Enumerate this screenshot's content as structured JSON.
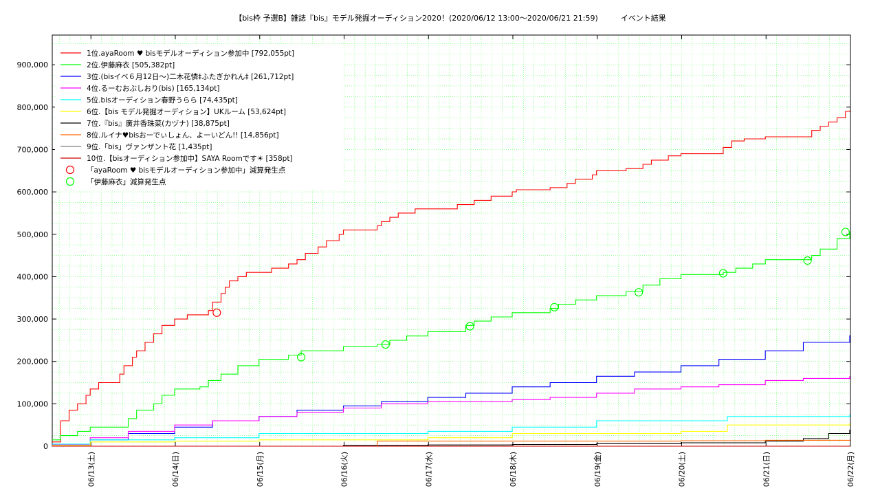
{
  "chart_data": {
    "type": "line",
    "title": "【bis枠 予選B】雑誌『bis』モデル発掘オーディション2020！(2020/06/12 13:00〜2020/06/21 21:59)　　　イベント結果",
    "xlabel": "",
    "ylabel": "",
    "x_range": [
      "06/12 13:00",
      "06/22"
    ],
    "ylim": [
      0,
      970000
    ],
    "y_ticks": [
      0,
      100000,
      200000,
      300000,
      400000,
      500000,
      600000,
      700000,
      800000,
      900000
    ],
    "y_tick_labels": [
      "0",
      "100,000",
      "200,000",
      "300,000",
      "400,000",
      "500,000",
      "600,000",
      "700,000",
      "800,000",
      "900,000"
    ],
    "x_tick_labels": [
      "06/13(土)",
      "06/14(日)",
      "06/15(月)",
      "06/16(火)",
      "06/17(水)",
      "06/18(木)",
      "06/19(金)",
      "06/20(土)",
      "06/21(日)",
      "06/22(月)"
    ],
    "x_tick_days": [
      0.4583,
      1.4583,
      2.4583,
      3.4583,
      4.4583,
      5.4583,
      6.4583,
      7.4583,
      8.4583,
      9.4583
    ],
    "grid": true,
    "legend_position": "top-left",
    "series": [
      {
        "name": "1位.ayaRoom ♥ bisモデルオーディション参加中 [792,055pt]",
        "color": "#ff0000",
        "x": [
          0,
          0.1,
          0.2,
          0.3,
          0.4,
          0.45,
          0.55,
          0.6,
          0.8,
          0.85,
          0.95,
          1.0,
          1.1,
          1.2,
          1.3,
          1.45,
          1.55,
          1.6,
          1.85,
          1.9,
          2.0,
          2.05,
          2.1,
          2.2,
          2.3,
          2.45,
          2.6,
          2.8,
          2.9,
          3.0,
          3.15,
          3.25,
          3.4,
          3.45,
          3.5,
          3.85,
          3.9,
          4.0,
          4.1,
          4.3,
          4.45,
          4.5,
          4.8,
          5.0,
          5.2,
          5.45,
          5.5,
          5.9,
          6.1,
          6.2,
          6.4,
          6.45,
          6.8,
          7.0,
          7.1,
          7.3,
          7.45,
          7.5,
          7.95,
          8.05,
          8.2,
          8.45,
          8.5,
          9.0,
          9.1,
          9.2,
          9.3,
          9.4,
          9.45
        ],
        "y": [
          10000,
          60000,
          85000,
          100000,
          120000,
          135000,
          150000,
          150000,
          170000,
          190000,
          210000,
          225000,
          245000,
          265000,
          285000,
          300000,
          300000,
          310000,
          320000,
          340000,
          360000,
          375000,
          390000,
          400000,
          410000,
          410000,
          420000,
          430000,
          440000,
          455000,
          470000,
          485000,
          500000,
          510000,
          510000,
          520000,
          530000,
          540000,
          550000,
          560000,
          560000,
          560000,
          570000,
          580000,
          590000,
          600000,
          605000,
          610000,
          620000,
          630000,
          640000,
          650000,
          655000,
          665000,
          675000,
          685000,
          690000,
          690000,
          705000,
          720000,
          725000,
          730000,
          730000,
          745000,
          755000,
          765000,
          775000,
          790000,
          792055
        ]
      },
      {
        "name": "2位.伊藤麻衣 [505,382pt]",
        "color": "#00ff00",
        "x": [
          0,
          0.1,
          0.3,
          0.45,
          0.9,
          1.0,
          1.2,
          1.3,
          1.45,
          1.75,
          1.85,
          2.0,
          2.2,
          2.45,
          2.8,
          2.95,
          3.45,
          3.85,
          4.0,
          4.2,
          4.45,
          4.9,
          5.0,
          5.2,
          5.45,
          5.9,
          6.0,
          6.2,
          6.45,
          6.8,
          7.0,
          7.2,
          7.45,
          7.95,
          8.1,
          8.3,
          8.45,
          8.9,
          9.0,
          9.1,
          9.3,
          9.45
        ],
        "y": [
          15000,
          25000,
          35000,
          45000,
          65000,
          85000,
          100000,
          120000,
          135000,
          140000,
          155000,
          170000,
          190000,
          205000,
          215000,
          225000,
          235000,
          240000,
          250000,
          260000,
          270000,
          285000,
          295000,
          305000,
          315000,
          325000,
          335000,
          345000,
          355000,
          365000,
          380000,
          395000,
          405000,
          410000,
          420000,
          430000,
          440000,
          440000,
          450000,
          465000,
          490000,
          505382
        ]
      },
      {
        "name": "3位.(bisイベ６月12日〜)二木花憐‡ふたぎかれん‡ [261,712pt]",
        "color": "#0000ff",
        "x": [
          0,
          0.45,
          0.9,
          1.45,
          1.9,
          2.45,
          2.9,
          3.45,
          3.9,
          4.45,
          4.9,
          5.45,
          5.9,
          6.45,
          6.9,
          7.45,
          7.9,
          8.45,
          8.9,
          9.45
        ],
        "y": [
          2000,
          15000,
          30000,
          45000,
          60000,
          70000,
          85000,
          95000,
          105000,
          115000,
          125000,
          140000,
          150000,
          165000,
          175000,
          190000,
          205000,
          225000,
          245000,
          261712
        ]
      },
      {
        "name": "4位.るーむおぶしおり(bis) [165,134pt]",
        "color": "#ff00ff",
        "x": [
          0,
          0.45,
          0.9,
          1.45,
          1.9,
          2.45,
          2.9,
          3.45,
          3.9,
          4.45,
          4.9,
          5.45,
          5.9,
          6.45,
          6.9,
          7.45,
          7.9,
          8.45,
          8.9,
          9.45
        ],
        "y": [
          3000,
          20000,
          35000,
          50000,
          60000,
          70000,
          80000,
          90000,
          100000,
          105000,
          105000,
          110000,
          115000,
          125000,
          135000,
          140000,
          145000,
          155000,
          160000,
          165134
        ]
      },
      {
        "name": "5位.bisオーディション春野うらら [74,435pt]",
        "color": "#00ffff",
        "x": [
          0,
          0.45,
          1.45,
          2.45,
          3.45,
          4.45,
          5.45,
          6.45,
          7.45,
          8.0,
          8.45,
          9.45
        ],
        "y": [
          5000,
          15000,
          20000,
          30000,
          30000,
          35000,
          45000,
          60000,
          60000,
          70000,
          70000,
          74435
        ]
      },
      {
        "name": "6位.【bis モデル発掘オーディション】UKルーム [53,624pt]",
        "color": "#ffff00",
        "x": [
          0,
          0.45,
          1.45,
          2.45,
          3.45,
          4.45,
          5.45,
          6.45,
          7.45,
          8.0,
          8.45,
          9.45
        ],
        "y": [
          2000,
          10000,
          12000,
          15000,
          15000,
          20000,
          30000,
          30000,
          35000,
          50000,
          50000,
          53624
        ]
      },
      {
        "name": "7位.『bis』廣井香珠菜(カヅナ) [38,875pt]",
        "color": "#000000",
        "x": [
          0,
          2.45,
          3.45,
          4.45,
          5.45,
          6.45,
          7.45,
          8.45,
          8.9,
          9.2,
          9.45
        ],
        "y": [
          0,
          0,
          2000,
          3000,
          4000,
          6000,
          8000,
          12000,
          18000,
          30000,
          38875
        ]
      },
      {
        "name": "8位.ルイナ♥bisおーでぃしょん、よーいどん!! [14,856pt]",
        "color": "#ff6600",
        "x": [
          0,
          3.5,
          3.85,
          4.45,
          5.45,
          6.45,
          7.45,
          8.45,
          9.45
        ],
        "y": [
          0,
          0,
          12000,
          12000,
          12000,
          12000,
          13000,
          14000,
          14856
        ]
      },
      {
        "name": "9位.「bis」ヴァンザント花 [1,435pt]",
        "color": "#808080",
        "x": [
          0,
          9.45
        ],
        "y": [
          0,
          1435
        ]
      },
      {
        "name": "10位.【bisオーディション参加中】SAYA Roomです☀ [358pt]",
        "color": "#cc0000",
        "x": [
          0,
          9.45
        ],
        "y": [
          0,
          358
        ]
      }
    ],
    "markers": [
      {
        "name": "「ayaRoom ♥ bisモデルオーディション参加中」減算発生点",
        "color": "#ff0000",
        "points": [
          [
            1.95,
            315000
          ]
        ]
      },
      {
        "name": "「伊藤麻衣」減算発生点",
        "color": "#00ff00",
        "points": [
          [
            2.95,
            210000
          ],
          [
            3.95,
            240000
          ],
          [
            4.95,
            283000
          ],
          [
            5.95,
            328000
          ],
          [
            6.95,
            363000
          ],
          [
            7.95,
            408000
          ],
          [
            8.95,
            438000
          ],
          [
            9.4,
            505382
          ]
        ]
      }
    ]
  }
}
